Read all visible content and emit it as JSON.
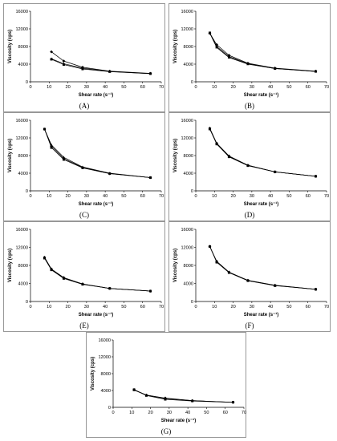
{
  "colors": {
    "frame": "#7f7f7f",
    "axis": "#000000",
    "line": "#000000",
    "background": "#ffffff"
  },
  "chart_data": [
    {
      "type": "line",
      "label": "(A)",
      "xlabel": "Shear rate (s⁻¹)",
      "ylabel": "Viscosity (cps)",
      "xlim": [
        0,
        70
      ],
      "ylim": [
        0,
        16000
      ],
      "xticks": [
        "0",
        "10",
        "20",
        "30",
        "40",
        "50",
        "60",
        "70"
      ],
      "yticks": [
        "0",
        "4000",
        "8000",
        "12000",
        "16000"
      ],
      "series": [
        {
          "marker": "diamond",
          "x": [
            11.2,
            17.8,
            27.9,
            42.4,
            64.2
          ],
          "y": [
            6800,
            4700,
            3300,
            2400,
            1900
          ]
        },
        {
          "marker": "square",
          "x": [
            11.2,
            17.8,
            27.9,
            42.4,
            64.2
          ],
          "y": [
            5100,
            3900,
            2900,
            2300,
            1850
          ]
        },
        {
          "marker": "triangle",
          "x": [
            11.2,
            17.8,
            27.9,
            42.4,
            64.2
          ],
          "y": [
            5200,
            4100,
            3100,
            2350,
            1850
          ]
        }
      ]
    },
    {
      "type": "line",
      "label": "(B)",
      "xlabel": "Shear rate (s⁻¹)",
      "ylabel": "Viscosity (cps)",
      "xlim": [
        0,
        70
      ],
      "ylim": [
        0,
        16000
      ],
      "xticks": [
        "0",
        "10",
        "20",
        "30",
        "40",
        "50",
        "60",
        "70"
      ],
      "yticks": [
        "0",
        "4000",
        "8000",
        "12000",
        "16000"
      ],
      "series": [
        {
          "marker": "diamond",
          "x": [
            7.5,
            11.2,
            17.8,
            27.9,
            42.4,
            64.2
          ],
          "y": [
            11000,
            8400,
            6000,
            4200,
            3100,
            2400
          ]
        },
        {
          "marker": "square",
          "x": [
            7.5,
            11.2,
            17.8,
            27.9,
            42.4,
            64.2
          ],
          "y": [
            11100,
            8000,
            5700,
            4100,
            3000,
            2350
          ]
        },
        {
          "marker": "triangle",
          "x": [
            7.5,
            11.2,
            17.8,
            27.9,
            42.4,
            64.2
          ],
          "y": [
            11000,
            7800,
            5500,
            4000,
            3000,
            2350
          ]
        }
      ]
    },
    {
      "type": "line",
      "label": "(C)",
      "xlabel": "Shear rate (s⁻¹)",
      "ylabel": "Viscosity (cps)",
      "xlim": [
        0,
        70
      ],
      "ylim": [
        0,
        16000
      ],
      "xticks": [
        "0",
        "10",
        "20",
        "30",
        "40",
        "50",
        "60",
        "70"
      ],
      "yticks": [
        "0",
        "4000",
        "8000",
        "12000",
        "16000"
      ],
      "series": [
        {
          "marker": "diamond",
          "x": [
            7.5,
            11.2,
            17.8,
            27.9,
            42.4,
            64.2
          ],
          "y": [
            14000,
            10100,
            7300,
            5300,
            3900,
            3000
          ]
        },
        {
          "marker": "square",
          "x": [
            7.5,
            11.2,
            17.8,
            27.9,
            42.4,
            64.2
          ],
          "y": [
            14000,
            9800,
            7100,
            5200,
            3900,
            3000
          ]
        },
        {
          "marker": "triangle",
          "x": [
            7.5,
            11.2,
            17.8,
            27.9,
            42.4,
            64.2
          ],
          "y": [
            14000,
            10400,
            7600,
            5400,
            4000,
            3000
          ]
        }
      ]
    },
    {
      "type": "line",
      "label": "(D)",
      "xlabel": "Shear rate (s⁻¹)",
      "ylabel": "Viscosity (cps)",
      "xlim": [
        0,
        70
      ],
      "ylim": [
        0,
        16000
      ],
      "xticks": [
        "0",
        "10",
        "20",
        "30",
        "40",
        "50",
        "60",
        "70"
      ],
      "yticks": [
        "0",
        "4000",
        "8000",
        "12000",
        "16000"
      ],
      "series": [
        {
          "marker": "diamond",
          "x": [
            7.5,
            11.2,
            17.8,
            27.9,
            42.4,
            64.2
          ],
          "y": [
            14200,
            10800,
            7900,
            5800,
            4300,
            3300
          ]
        },
        {
          "marker": "square",
          "x": [
            7.5,
            11.2,
            17.8,
            27.9,
            42.4,
            64.2
          ],
          "y": [
            14000,
            10600,
            7700,
            5700,
            4300,
            3300
          ]
        },
        {
          "marker": "triangle",
          "x": [
            7.5,
            11.2,
            17.8,
            27.9,
            42.4,
            64.2
          ],
          "y": [
            14100,
            10700,
            7800,
            5800,
            4300,
            3300
          ]
        }
      ]
    },
    {
      "type": "line",
      "label": "(E)",
      "xlabel": "Shear rate (s⁻¹)",
      "ylabel": "Viscosity (cps)",
      "xlim": [
        0,
        70
      ],
      "ylim": [
        0,
        16000
      ],
      "xticks": [
        "0",
        "10",
        "20",
        "30",
        "40",
        "50",
        "60",
        "70"
      ],
      "yticks": [
        "0",
        "4000",
        "8000",
        "12000",
        "16000"
      ],
      "series": [
        {
          "marker": "diamond",
          "x": [
            7.5,
            11.2,
            17.8,
            27.9,
            42.4,
            64.2
          ],
          "y": [
            9800,
            7200,
            5300,
            3900,
            2900,
            2300
          ]
        },
        {
          "marker": "square",
          "x": [
            7.5,
            11.2,
            17.8,
            27.9,
            42.4,
            64.2
          ],
          "y": [
            9600,
            7000,
            5100,
            3800,
            2900,
            2300
          ]
        },
        {
          "marker": "triangle",
          "x": [
            7.5,
            11.2,
            17.8,
            27.9,
            42.4,
            64.2
          ],
          "y": [
            9700,
            7100,
            5200,
            3850,
            2900,
            2300
          ]
        }
      ]
    },
    {
      "type": "line",
      "label": "(F)",
      "xlabel": "Shear rate (s⁻¹)",
      "ylabel": "Viscosity (cps)",
      "xlim": [
        0,
        70
      ],
      "ylim": [
        0,
        16000
      ],
      "xticks": [
        "0",
        "10",
        "20",
        "30",
        "40",
        "50",
        "60",
        "70"
      ],
      "yticks": [
        "0",
        "4000",
        "8000",
        "12000",
        "16000"
      ],
      "series": [
        {
          "marker": "diamond",
          "x": [
            7.5,
            11.2,
            17.8,
            27.9,
            42.4,
            64.2
          ],
          "y": [
            12200,
            8900,
            6500,
            4700,
            3600,
            2700
          ]
        },
        {
          "marker": "square",
          "x": [
            7.5,
            11.2,
            17.8,
            27.9,
            42.4,
            64.2
          ],
          "y": [
            12200,
            8700,
            6400,
            4600,
            3500,
            2700
          ]
        },
        {
          "marker": "triangle",
          "x": [
            7.5,
            11.2,
            17.8,
            27.9,
            42.4,
            64.2
          ],
          "y": [
            12200,
            8800,
            6500,
            4650,
            3550,
            2700
          ]
        }
      ]
    },
    {
      "type": "line",
      "label": "(G)",
      "xlabel": "Shear rate (s⁻¹)",
      "ylabel": "Viscosity (cps)",
      "xlim": [
        0,
        70
      ],
      "ylim": [
        0,
        16000
      ],
      "xticks": [
        "0",
        "10",
        "20",
        "30",
        "40",
        "50",
        "60",
        "70"
      ],
      "yticks": [
        "0",
        "4000",
        "8000",
        "12000",
        "16000"
      ],
      "series": [
        {
          "marker": "diamond",
          "x": [
            11.2,
            17.8,
            27.9,
            42.4,
            64.2
          ],
          "y": [
            4200,
            2900,
            2200,
            1600,
            1200
          ]
        },
        {
          "marker": "square",
          "x": [
            11.2,
            17.8,
            27.9,
            42.4,
            64.2
          ],
          "y": [
            4200,
            2800,
            1900,
            1500,
            1200
          ]
        },
        {
          "marker": "triangle",
          "x": [
            11.2,
            17.8,
            27.9,
            42.4,
            64.2
          ],
          "y": [
            4100,
            2900,
            2100,
            1600,
            1200
          ]
        }
      ]
    }
  ]
}
